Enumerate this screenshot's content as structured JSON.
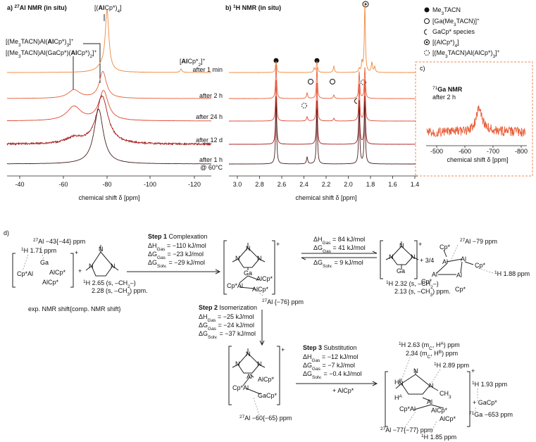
{
  "panel_a": {
    "title": [
      "a) ",
      {
        "sup": "27"
      },
      "Al NMR (in situ)"
    ],
    "annotations": [
      [
        "[(",
        {
          "b": "Al"
        },
        "Cp*)",
        {
          "sub": "4"
        },
        "]"
      ],
      [
        "[(Me",
        {
          "sub": "3"
        },
        "TACN)Al(",
        {
          "b": "Al"
        },
        "Cp*)",
        {
          "sub": "3"
        },
        "]",
        {
          "sup": "+"
        }
      ],
      [
        "[(Me",
        {
          "sub": "3"
        },
        "TACN)Al(GaCp*)(",
        {
          "b": "Al"
        },
        "Cp*)",
        {
          "sub": "2"
        },
        "]",
        {
          "sup": "+"
        }
      ],
      [
        "[",
        {
          "b": "Al"
        },
        "Cp*",
        {
          "sub": "2"
        },
        "]",
        {
          "sup": "+"
        }
      ]
    ],
    "xticks": [
      "-40",
      "-60",
      "-80",
      "-100",
      "-120"
    ],
    "xlabel": "chemical shift δ [ppm]"
  },
  "spectra_labels": [
    "after 1 min",
    "after 2 h",
    "after 24 h",
    "after 12 d",
    "after 1 h",
    "@ 60°C"
  ],
  "panel_b": {
    "title": [
      "b) ",
      {
        "sup": "1"
      },
      "H NMR (in situ)"
    ],
    "xticks": [
      "3.0",
      "2.8",
      "2.6",
      "2.4",
      "2.2",
      "2.0",
      "1.8",
      "1.6",
      "1.4"
    ],
    "xlabel": "chemical shift δ [ppm]"
  },
  "legend": [
    [
      "Me",
      {
        "sub": "3"
      },
      "TACN"
    ],
    [
      "[Ga(Me",
      {
        "sub": "3"
      },
      "TACN)]",
      {
        "sup": "+"
      }
    ],
    "GaCp* species",
    [
      "[(AlCp*)",
      {
        "sub": "4"
      },
      "]"
    ],
    [
      "[(Me",
      {
        "sub": "3"
      },
      "TACN)Al(AlCp*)",
      {
        "sub": "3"
      },
      "]",
      {
        "sup": "+"
      }
    ]
  ],
  "panel_c": {
    "label": "c)",
    "title": [
      {
        "sup": "71"
      },
      {
        "b": "Ga NMR"
      }
    ],
    "subtitle": "after 2 h",
    "xticks": [
      "-500",
      "-600",
      "-700",
      "-800"
    ],
    "xlabel": "chemical shift δ [ppm]"
  },
  "panel_d": {
    "label": "d)",
    "start": {
      "atoms": [
        "Cp*Al",
        "Ga",
        "AlCp*",
        "AlCp*"
      ],
      "charge": "+",
      "shifts": [
        [
          {
            "sup": "27"
          },
          "Al −43{−44} ppm"
        ],
        [
          {
            "sup": "1"
          },
          "H 1.71 ppm"
        ]
      ]
    },
    "plus": "+",
    "ligand": {
      "atoms": [
        "N",
        "N",
        "N"
      ],
      "shifts": [
        [
          {
            "sup": "1"
          },
          "H 2.65 (s, –CH",
          {
            "sub": "2"
          },
          "–)"
        ],
        [
          "2.28 (s, –CH",
          {
            "sub": "3"
          },
          ") ppm."
        ]
      ]
    },
    "shift_note": "exp. NMR shift{comp. NMR shift}",
    "step1": {
      "title": [
        {
          "b": "Step 1"
        },
        " Complexation"
      ],
      "energies": [
        [
          "ΔH",
          {
            "sub": "Gas"
          },
          " = −110 kJ/mol"
        ],
        [
          "ΔG",
          {
            "sub": "Gas"
          },
          " = −23 kJ/mol"
        ],
        [
          "ΔG",
          {
            "sub": "Solv."
          },
          " = −29 kJ/mol"
        ]
      ]
    },
    "complex1": {
      "atoms": [
        "N",
        "N",
        "N",
        "Ga",
        "AlCp*",
        "Cp*Al",
        "AlCp*"
      ],
      "charge": "+",
      "shifts": [
        [
          {
            "sup": "27"
          },
          "Al {−76} ppm"
        ]
      ]
    },
    "equilibrium": {
      "energies": [
        [
          "ΔH",
          {
            "sub": "Gas"
          },
          " = 84 kJ/mol"
        ],
        [
          "ΔG",
          {
            "sub": "Gas"
          },
          " = 41 kJ/mol"
        ],
        [
          "ΔG",
          {
            "sub": "Solv."
          },
          " = 9 kJ/mol"
        ]
      ]
    },
    "product_a": {
      "atoms": [
        "N",
        "N",
        "N",
        "Ga"
      ],
      "charge": "+",
      "coefficient": "+ 3/4",
      "shifts": [
        [
          {
            "sup": "1"
          },
          "H 2.32 (s, –CH",
          {
            "sub": "2"
          },
          "–)"
        ],
        [
          "2.13 (s, –CH",
          {
            "sub": "3"
          },
          ") ppm."
        ]
      ]
    },
    "cluster": {
      "atoms": [
        "Cp*",
        "Al",
        "Al",
        "Al",
        "Al",
        "Cp*",
        "Cp*",
        "Cp*"
      ],
      "shifts": [
        [
          {
            "sup": "27"
          },
          "Al −79 ppm"
        ],
        [
          {
            "sup": "1"
          },
          "H 1.88 ppm"
        ]
      ]
    },
    "step2": {
      "title": [
        {
          "b": "Step 2"
        },
        " Isomerization"
      ],
      "energies": [
        [
          "ΔH",
          {
            "sub": "Gas"
          },
          " = −25 kJ/mol"
        ],
        [
          "ΔG",
          {
            "sub": "Gas"
          },
          " = −24 kJ/mol"
        ],
        [
          "ΔG",
          {
            "sub": "Solv."
          },
          " = −37 kJ/mol"
        ]
      ]
    },
    "complex2": {
      "atoms": [
        "N",
        "N",
        "N",
        "Al",
        "AlCp*",
        "Cp*Al",
        "GaCp*"
      ],
      "charge": "+",
      "shifts": [
        [
          {
            "sup": "27"
          },
          "Al −60{−65} ppm"
        ]
      ]
    },
    "step3": {
      "title": [
        {
          "b": "Step 3"
        },
        " Substitution"
      ],
      "energies": [
        [
          "ΔH",
          {
            "sub": "Gas"
          },
          " = −12 kJ/mol"
        ],
        [
          "ΔG",
          {
            "sub": "Gas"
          },
          " = −7 kJ/mol"
        ],
        [
          "ΔG",
          {
            "sub": "Solv."
          },
          " = −0.4 kJ/mol"
        ]
      ],
      "reagent": "+ AlCp*"
    },
    "final": {
      "atoms": [
        [
          "H",
          {
            "sup": "B"
          }
        ],
        [
          "H",
          {
            "sup": "A"
          }
        ],
        "N",
        "N",
        "N",
        [
          "CH",
          {
            "sub": "3"
          }
        ],
        "Al",
        "Cp*Al",
        "AlCp*",
        "AlCp*"
      ],
      "charge": "+",
      "shifts": [
        [
          {
            "sup": "1"
          },
          "H 2.63 (m",
          {
            "sub": "C"
          },
          ", H",
          {
            "sup": "A"
          },
          ") ppm"
        ],
        [
          "2.34 (m",
          {
            "sub": "C"
          },
          ", H",
          {
            "sup": "B"
          },
          ") ppm"
        ],
        [
          {
            "sup": "1"
          },
          "H 2.89 ppm"
        ],
        [
          {
            "sup": "27"
          },
          "Al −77{−77} ppm"
        ],
        [
          {
            "sup": "1"
          },
          "H 1.85 ppm"
        ]
      ],
      "byproduct": "+ GaCp*",
      "byproduct_shifts": [
        [
          {
            "sup": "1"
          },
          "H 1.93 ppm"
        ],
        [
          {
            "sup": "71"
          },
          "Ga −653 ppm"
        ]
      ]
    }
  }
}
